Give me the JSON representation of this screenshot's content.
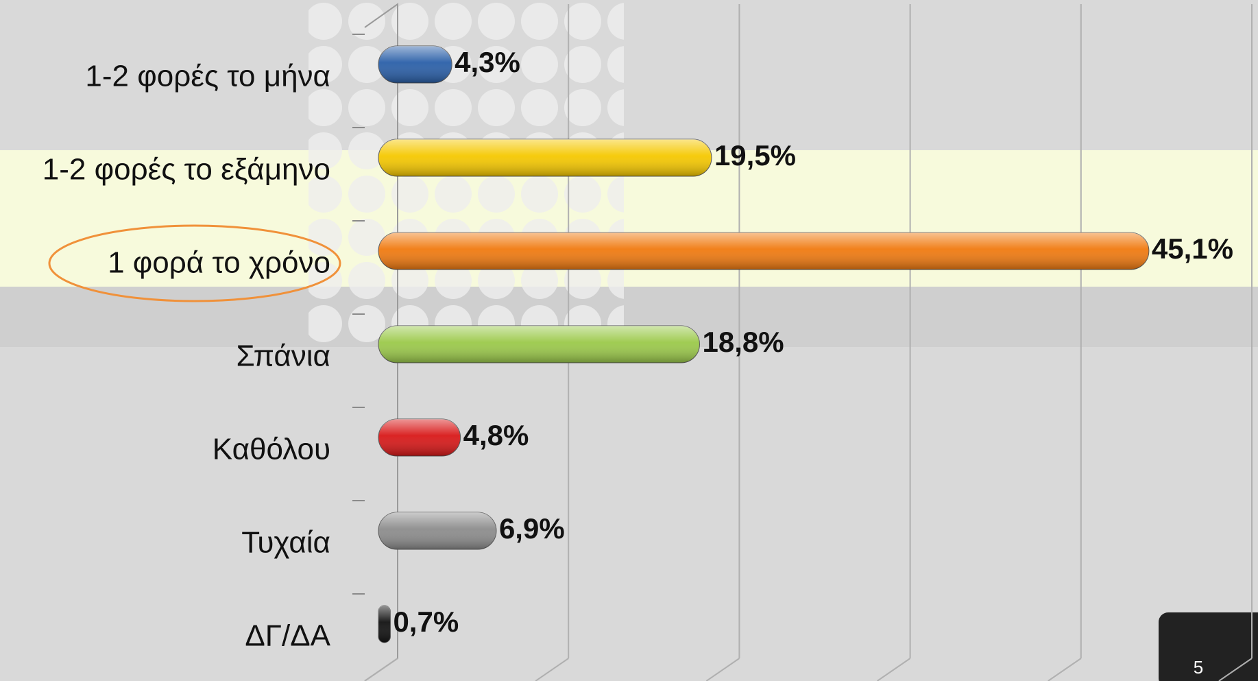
{
  "chart_data": {
    "type": "bar",
    "orientation": "horizontal",
    "categories": [
      "1-2 φορές το μήνα",
      "1-2 φορές το εξάμηνο",
      "1 φορά το χρόνο",
      "Σπάνια",
      "Καθόλου",
      "Τυχαία",
      "ΔΓ/ΔΑ"
    ],
    "values": [
      4.3,
      19.5,
      45.1,
      18.8,
      4.8,
      6.9,
      0.7
    ],
    "value_labels": [
      "4,3%",
      "19,5%",
      "45,1%",
      "18,8%",
      "4,8%",
      "6,9%",
      "0,7%"
    ],
    "colors": [
      "#2a5fa8",
      "#f5c800",
      "#f07a10",
      "#9bc94a",
      "#d81818",
      "#8c8c8c",
      "#111111"
    ],
    "xlim": [
      0,
      50
    ],
    "xticks": [
      0,
      10,
      20,
      30,
      40,
      50
    ],
    "grid": true
  },
  "slide": {
    "page_number": "5"
  }
}
